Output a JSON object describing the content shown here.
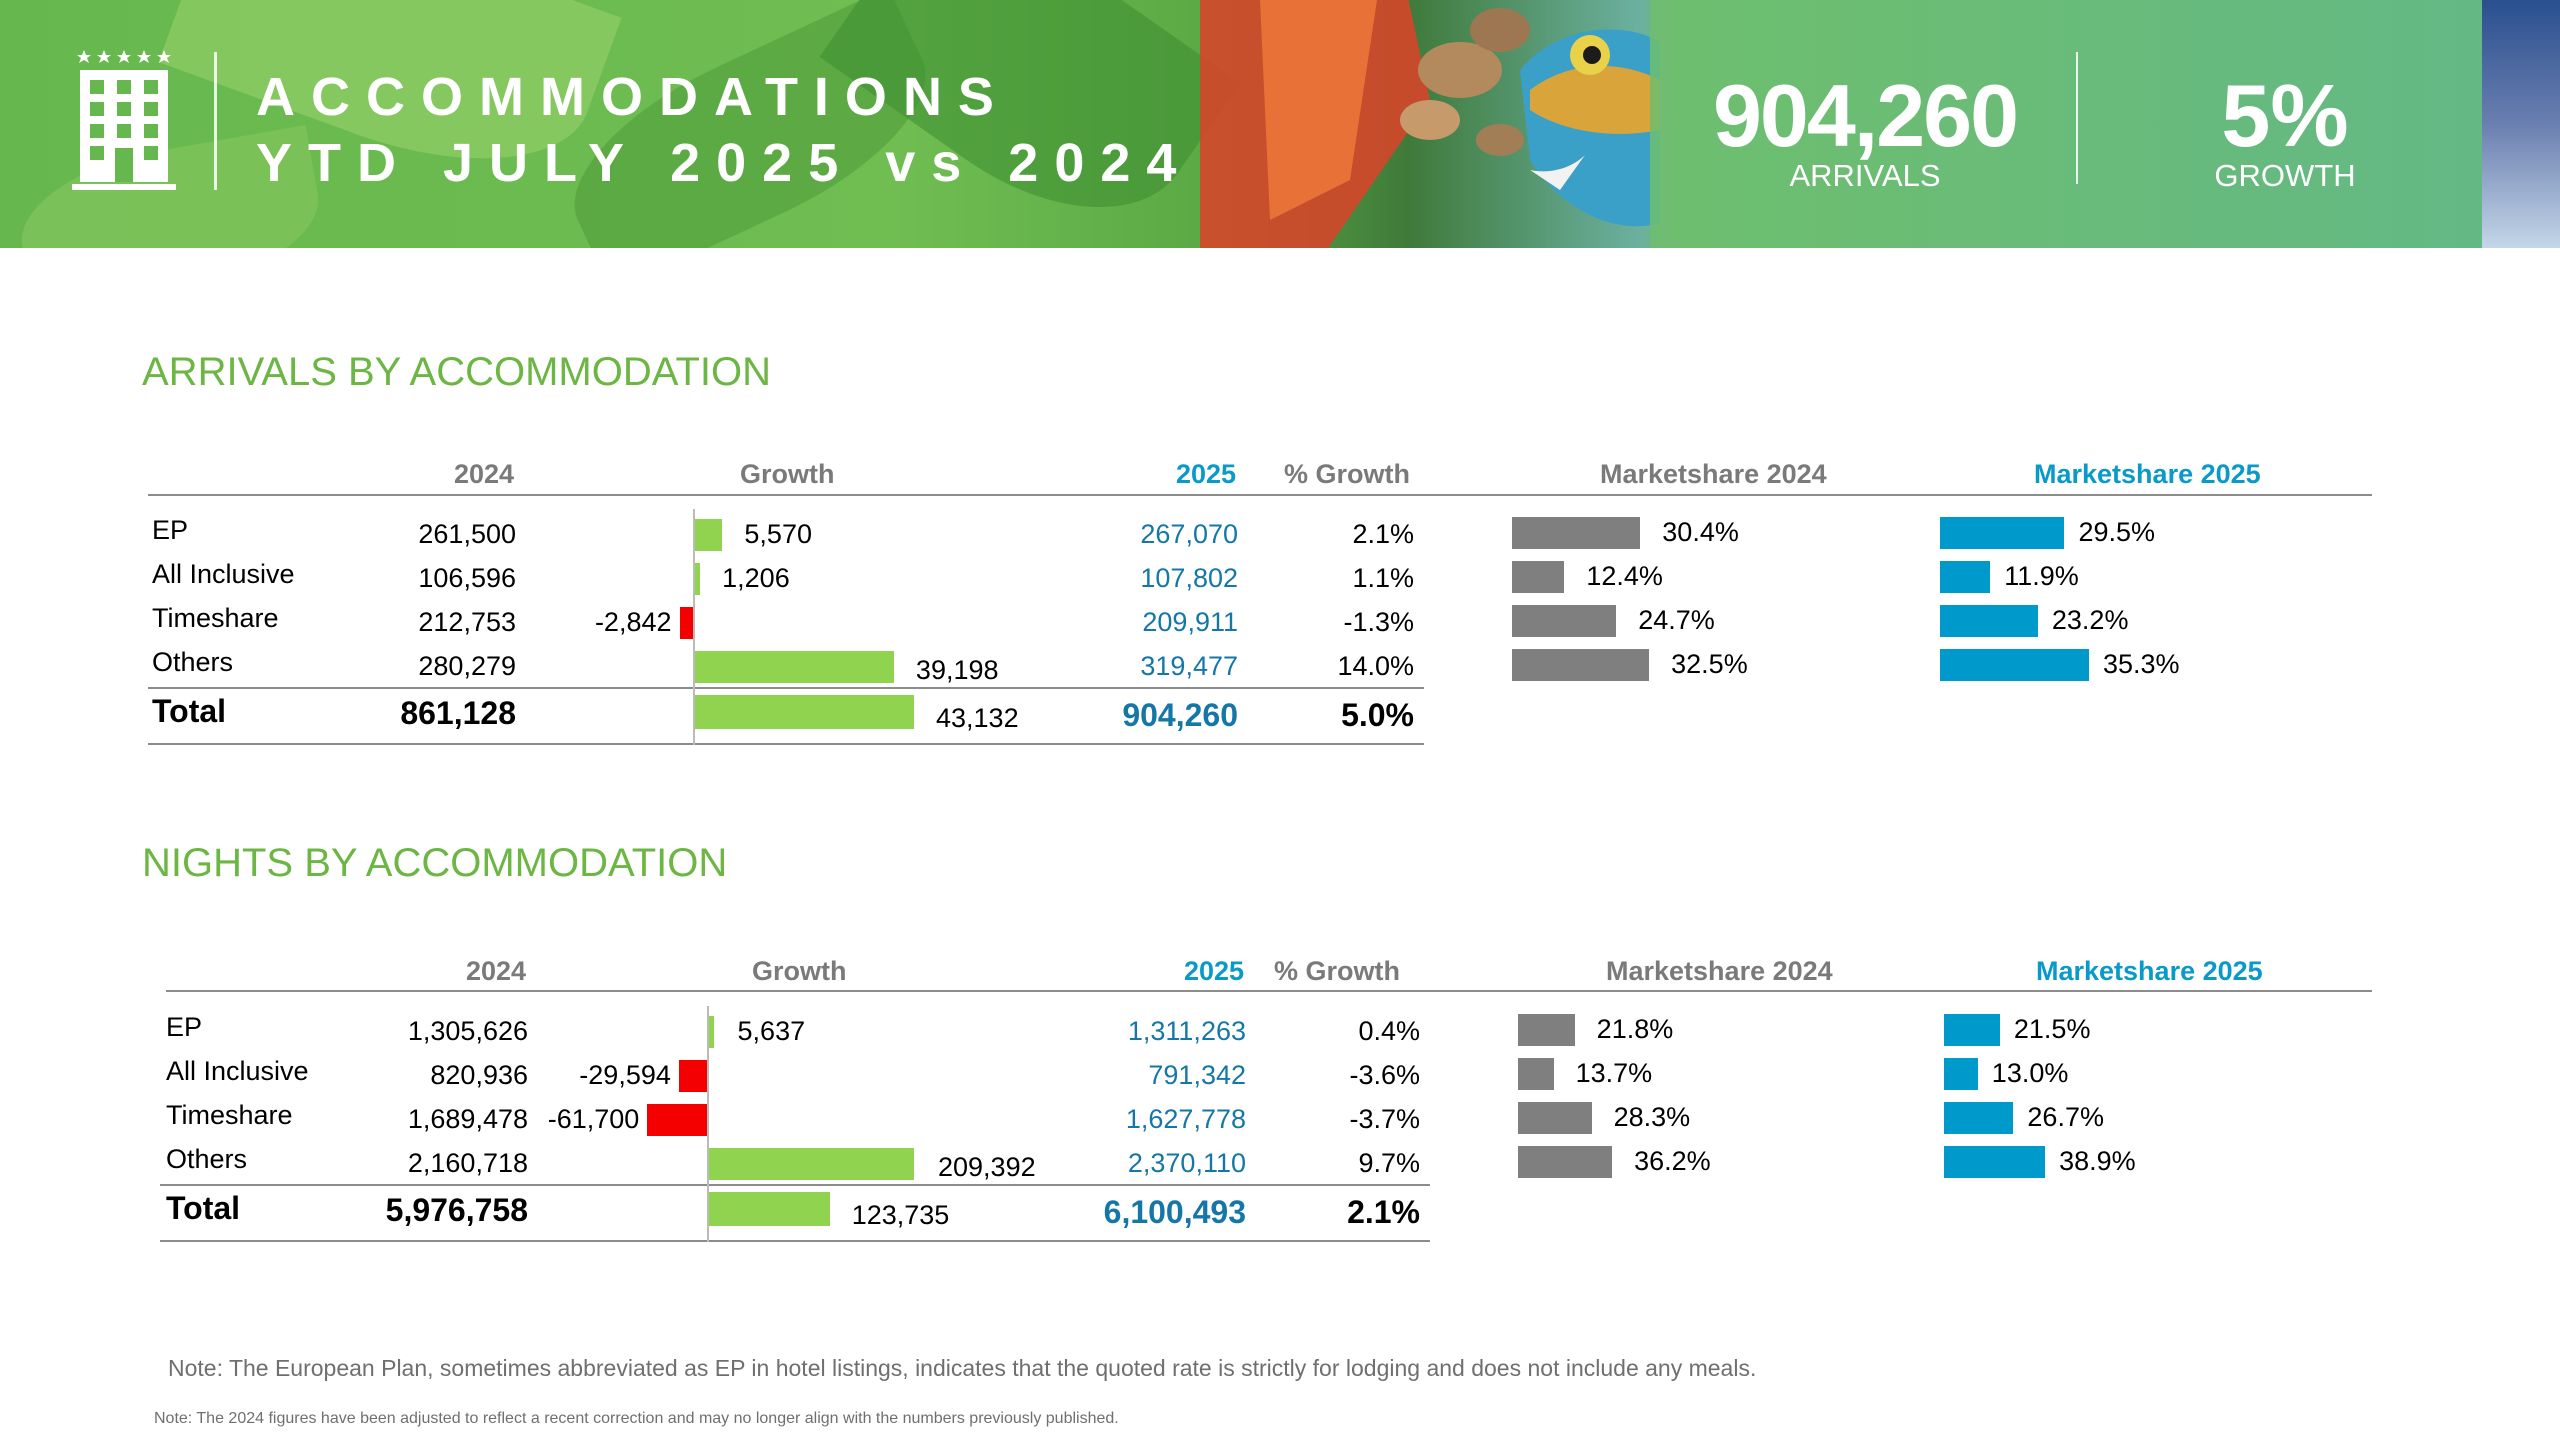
{
  "header": {
    "title_line1": "ACCOMMODATIONS",
    "title_line2": "YTD JULY 2025 vs 2024",
    "arrivals_value": "904,260",
    "arrivals_label": "ARRIVALS",
    "growth_value": "5%",
    "growth_label": "GROWTH"
  },
  "columns": {
    "y2024": "2024",
    "growth": "Growth",
    "y2025": "2025",
    "pct_growth": "% Growth",
    "ms2024": "Marketshare 2024",
    "ms2025": "Marketshare 2025"
  },
  "arrivals": {
    "title": "ARRIVALS BY ACCOMMODATION",
    "rows": [
      {
        "label": "EP",
        "y2024": "261,500",
        "growth": "5,570",
        "growth_value": 5570,
        "y2025": "267,070",
        "pct": "2.1%",
        "ms2024": "30.4%",
        "ms2024_value": 30.4,
        "ms2025": "29.5%",
        "ms2025_value": 29.5
      },
      {
        "label": "All Inclusive",
        "y2024": "106,596",
        "growth": "1,206",
        "growth_value": 1206,
        "y2025": "107,802",
        "pct": "1.1%",
        "ms2024": "12.4%",
        "ms2024_value": 12.4,
        "ms2025": "11.9%",
        "ms2025_value": 11.9
      },
      {
        "label": "Timeshare",
        "y2024": "212,753",
        "growth": "-2,842",
        "growth_value": -2842,
        "y2025": "209,911",
        "pct": "-1.3%",
        "ms2024": "24.7%",
        "ms2024_value": 24.7,
        "ms2025": "23.2%",
        "ms2025_value": 23.2
      },
      {
        "label": "Others",
        "y2024": "280,279",
        "growth": "39,198",
        "growth_value": 39198,
        "y2025": "319,477",
        "pct": "14.0%",
        "ms2024": "32.5%",
        "ms2024_value": 32.5,
        "ms2025": "35.3%",
        "ms2025_value": 35.3
      }
    ],
    "total": {
      "label": "Total",
      "y2024": "861,128",
      "growth": "43,132",
      "growth_value": 43132,
      "y2025": "904,260",
      "pct": "5.0%"
    }
  },
  "nights": {
    "title": "NIGHTS BY ACCOMMODATION",
    "rows": [
      {
        "label": "EP",
        "y2024": "1,305,626",
        "growth": "5,637",
        "growth_value": 5637,
        "y2025": "1,311,263",
        "pct": "0.4%",
        "ms2024": "21.8%",
        "ms2024_value": 21.8,
        "ms2025": "21.5%",
        "ms2025_value": 21.5
      },
      {
        "label": "All Inclusive",
        "y2024": "820,936",
        "growth": "-29,594",
        "growth_value": -29594,
        "y2025": "791,342",
        "pct": "-3.6%",
        "ms2024": "13.7%",
        "ms2024_value": 13.7,
        "ms2025": "13.0%",
        "ms2025_value": 13.0
      },
      {
        "label": "Timeshare",
        "y2024": "1,689,478",
        "growth": "-61,700",
        "growth_value": -61700,
        "y2025": "1,627,778",
        "pct": "-3.7%",
        "ms2024": "28.3%",
        "ms2024_value": 28.3,
        "ms2025": "26.7%",
        "ms2025_value": 26.7
      },
      {
        "label": "Others",
        "y2024": "2,160,718",
        "growth": "209,392",
        "growth_value": 209392,
        "y2025": "2,370,110",
        "pct": "9.7%",
        "ms2024": "36.2%",
        "ms2024_value": 36.2,
        "ms2025": "38.9%",
        "ms2025_value": 38.9
      }
    ],
    "total": {
      "label": "Total",
      "y2024": "5,976,758",
      "growth": "123,735",
      "growth_value": 123735,
      "y2025": "6,100,493",
      "pct": "2.1%"
    }
  },
  "notes": {
    "note1": "Note: The European Plan, sometimes abbreviated as EP in hotel listings, indicates that the quoted rate is strictly for lodging and does not include any meals.",
    "note2": "Note: The 2024 figures have been adjusted to reflect a recent correction and may no longer align with the numbers previously published."
  },
  "colors": {
    "section_green": "#6cb644",
    "growth_positive": "#8fd34f",
    "growth_negative": "#f40000",
    "marketshare_2024": "#7f7f7f",
    "marketshare_2025": "#0099cc",
    "value_2025": "#1477a8"
  },
  "icons": {
    "hotel": "hotel-building-icon"
  }
}
